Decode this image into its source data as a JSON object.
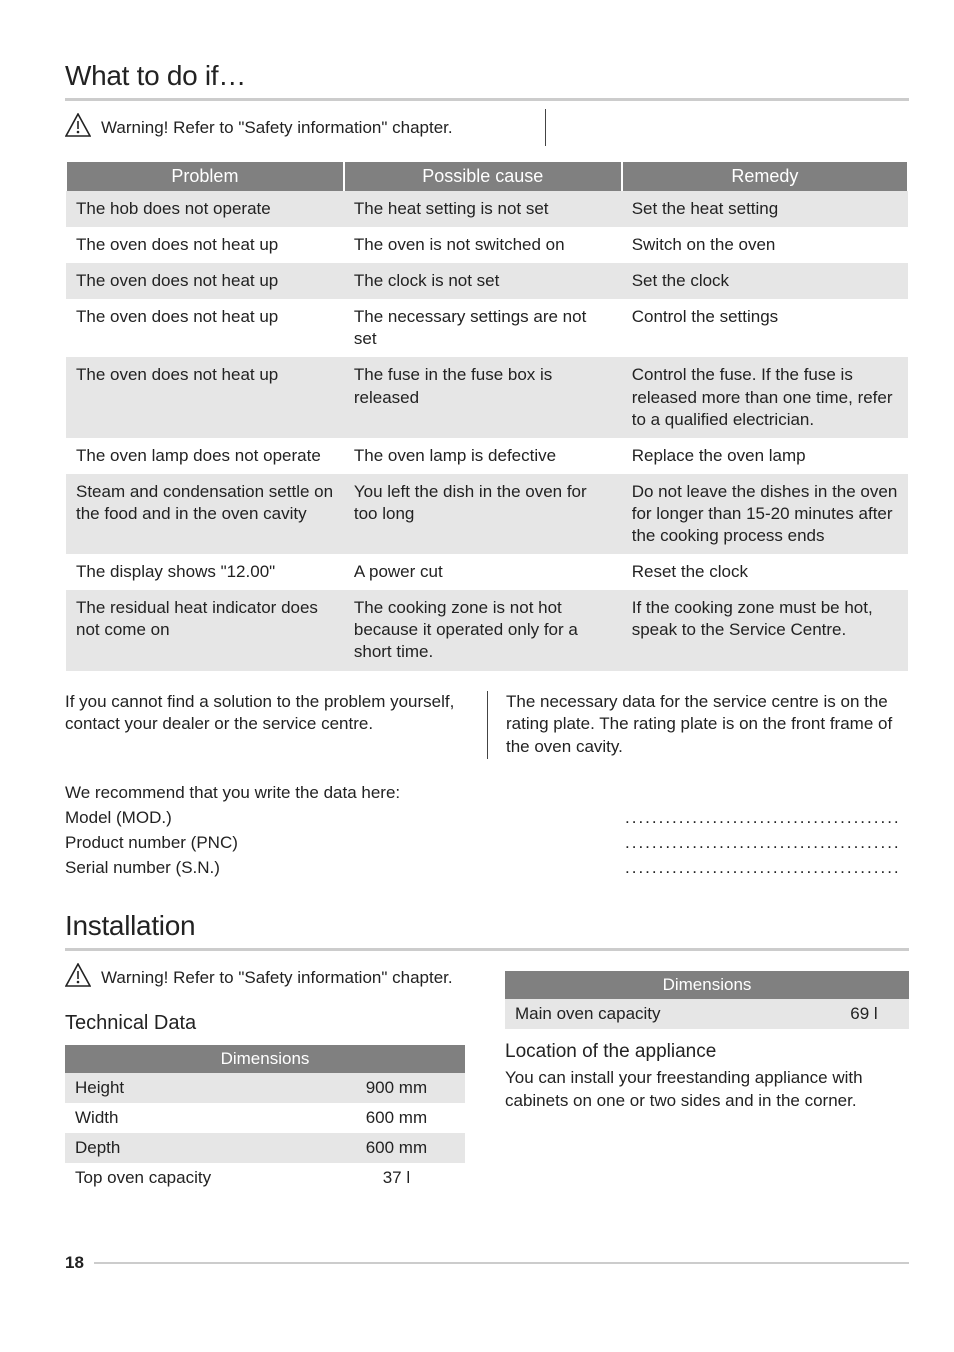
{
  "page_number": "18",
  "section1": {
    "title": "What to do if…",
    "warning_bold": "Warning!",
    "warning_text": " Refer to \"Safety information\" chapter.",
    "table": {
      "headers": [
        "Problem",
        "Possible cause",
        "Remedy"
      ],
      "rows": [
        {
          "alt": true,
          "cells": [
            "The hob does not operate",
            "The heat setting is not set",
            "Set the heat setting"
          ]
        },
        {
          "alt": false,
          "cells": [
            "The oven does not heat up",
            "The oven is not switched on",
            "Switch on the oven"
          ]
        },
        {
          "alt": true,
          "cells": [
            "The oven does not heat up",
            "The clock is not set",
            "Set the clock"
          ]
        },
        {
          "alt": false,
          "cells": [
            "The oven does not heat up",
            "The necessary settings are not set",
            "Control the settings"
          ]
        },
        {
          "alt": true,
          "cells": [
            "The oven does not heat up",
            "The fuse in the fuse box is released",
            "Control the fuse. If the fuse is released more than one time, refer to a qualified electrician."
          ]
        },
        {
          "alt": false,
          "cells": [
            "The oven lamp does not operate",
            "The oven lamp is defective",
            "Replace the oven lamp"
          ]
        },
        {
          "alt": true,
          "cells": [
            "Steam and condensation settle on the food and in the oven cavity",
            "You left the dish in the oven for too long",
            "Do not leave the dishes in the oven for longer than 15-20 minutes after the cooking process ends"
          ]
        },
        {
          "alt": false,
          "cells": [
            "The display shows \"12.00\"",
            "A power cut",
            "Reset the clock"
          ]
        },
        {
          "alt": true,
          "cells": [
            "The residual heat indicator does not come on",
            "The cooking zone is not hot because it operated only for a short time.",
            "If the cooking zone must be hot, speak to the Service Centre."
          ]
        }
      ]
    },
    "para_left": "If you cannot find a solution to the problem yourself, contact your dealer or the service centre.",
    "para_right": "The necessary data for the service centre is on the rating plate. The rating plate is on the front frame of the oven cavity.",
    "data_intro": "We recommend that you write the data here:",
    "data_lines": [
      "Model (MOD.)",
      "Product number (PNC)",
      "Serial number (S.N.)"
    ],
    "dots": "........................................."
  },
  "section2": {
    "title": "Installation",
    "warning_bold": "Warning!",
    "warning_text": " Refer to \"Safety information\" chapter.",
    "tech_data_heading": "Technical Data",
    "dim_table_left": {
      "header": "Dimensions",
      "rows": [
        {
          "alt": true,
          "k": "Height",
          "v": "900 mm"
        },
        {
          "alt": false,
          "k": "Width",
          "v": "600 mm"
        },
        {
          "alt": true,
          "k": "Depth",
          "v": "600 mm"
        },
        {
          "alt": false,
          "k": "Top oven capacity",
          "v": "37 l"
        }
      ]
    },
    "dim_table_right": {
      "header": "Dimensions",
      "rows": [
        {
          "alt": true,
          "k": "Main oven capacity",
          "v": "69 l"
        }
      ]
    },
    "location_heading": "Location of the appliance",
    "location_text": "You can install your freestanding appliance with cabinets on one or two sides and in the corner."
  },
  "styles": {
    "header_bg": "#808080",
    "header_fg": "#ffffff",
    "row_alt_bg": "#e6e6e6",
    "rule_color": "#cccccc",
    "text_color": "#222222",
    "body_font_size_pt": 13,
    "heading_font_size_pt": 21
  }
}
